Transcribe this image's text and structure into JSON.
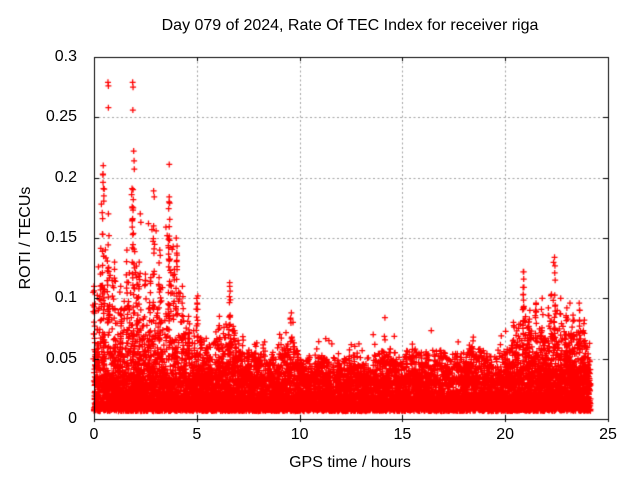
{
  "page": {
    "background": "#ffffff"
  },
  "chart_data": {
    "type": "scatter",
    "title": "Day 079 of 2024, Rate Of TEC Index for receiver riga",
    "xlabel": "GPS time / hours",
    "ylabel": "ROTI / TECUs",
    "xlim": [
      0,
      25
    ],
    "ylim": [
      0,
      0.3
    ],
    "xticks": [
      0,
      5,
      10,
      15,
      20,
      25
    ],
    "xtick_labels": [
      "0",
      "5",
      "10",
      "15",
      "20",
      "25"
    ],
    "yticks": [
      0,
      0.05,
      0.1,
      0.15,
      0.2,
      0.25,
      0.3
    ],
    "ytick_labels": [
      "0",
      "0.05",
      "0.1",
      "0.15",
      "0.2",
      "0.25",
      "0.3"
    ],
    "grid": true,
    "legend": "none",
    "marker": "plus",
    "marker_color": "#ff0000",
    "grid_color": "#a0a0a0",
    "axis_color": "#000000",
    "x_data_range": [
      0,
      24.15
    ],
    "baseline_band": {
      "description": "dense ROTI noise floor present at all hours, solid red band",
      "y_min": 0.005,
      "y_dense_top": 0.04,
      "y_typical_max": 0.055,
      "n_points": 9000
    },
    "activity_envelope": {
      "description": "approximate local maximum of spiky ROTI activity vs GPS hour",
      "points": [
        [
          0,
          0.11
        ],
        [
          0.45,
          0.21
        ],
        [
          0.7,
          0.17
        ],
        [
          1.0,
          0.13
        ],
        [
          1.3,
          0.11
        ],
        [
          1.6,
          0.14
        ],
        [
          1.9,
          0.19
        ],
        [
          2.2,
          0.13
        ],
        [
          2.5,
          0.12
        ],
        [
          2.9,
          0.16
        ],
        [
          3.2,
          0.14
        ],
        [
          3.65,
          0.18
        ],
        [
          4.0,
          0.15
        ],
        [
          4.3,
          0.11
        ],
        [
          4.6,
          0.085
        ],
        [
          5.0,
          0.1
        ],
        [
          5.5,
          0.075
        ],
        [
          6.1,
          0.085
        ],
        [
          6.6,
          0.11
        ],
        [
          7.1,
          0.075
        ],
        [
          7.7,
          0.075
        ],
        [
          8.2,
          0.065
        ],
        [
          8.7,
          0.065
        ],
        [
          9.2,
          0.065
        ],
        [
          9.6,
          0.088
        ],
        [
          10.0,
          0.065
        ],
        [
          10.5,
          0.062
        ],
        [
          11.0,
          0.065
        ],
        [
          11.4,
          0.07
        ],
        [
          12.0,
          0.06
        ],
        [
          12.5,
          0.065
        ],
        [
          13.0,
          0.062
        ],
        [
          13.5,
          0.065
        ],
        [
          14.0,
          0.072
        ],
        [
          14.5,
          0.062
        ],
        [
          15.0,
          0.065
        ],
        [
          15.6,
          0.075
        ],
        [
          16.0,
          0.07
        ],
        [
          16.5,
          0.066
        ],
        [
          17.0,
          0.07
        ],
        [
          17.5,
          0.066
        ],
        [
          18.0,
          0.071
        ],
        [
          18.5,
          0.075
        ],
        [
          19.0,
          0.071
        ],
        [
          19.5,
          0.066
        ],
        [
          20.0,
          0.071
        ],
        [
          20.4,
          0.08
        ],
        [
          20.9,
          0.122
        ],
        [
          21.2,
          0.09
        ],
        [
          21.5,
          0.096
        ],
        [
          21.8,
          0.1
        ],
        [
          22.1,
          0.092
        ],
        [
          22.4,
          0.134
        ],
        [
          22.7,
          0.1
        ],
        [
          23.0,
          0.092
        ],
        [
          23.3,
          0.086
        ],
        [
          23.6,
          0.096
        ],
        [
          23.85,
          0.082
        ],
        [
          24,
          0.07
        ]
      ]
    },
    "outliers": [
      [
        0.68,
        0.279
      ],
      [
        0.7,
        0.276
      ],
      [
        1.88,
        0.279
      ],
      [
        1.9,
        0.275
      ],
      [
        0.7,
        0.258
      ],
      [
        1.89,
        0.256
      ],
      [
        1.93,
        0.222
      ],
      [
        1.95,
        0.214
      ],
      [
        1.96,
        0.207
      ],
      [
        0.45,
        0.21
      ],
      [
        0.44,
        0.203
      ],
      [
        3.66,
        0.211
      ],
      [
        0.44,
        0.196
      ],
      [
        0.46,
        0.191
      ],
      [
        1.85,
        0.191
      ],
      [
        1.83,
        0.186
      ],
      [
        2.9,
        0.189
      ],
      [
        2.93,
        0.184
      ],
      [
        3.66,
        0.184
      ],
      [
        3.68,
        0.179
      ],
      [
        0.36,
        0.178
      ],
      [
        0.4,
        0.171
      ],
      [
        0.42,
        0.166
      ],
      [
        1.9,
        0.173
      ],
      [
        1.88,
        0.166
      ],
      [
        1.86,
        0.159
      ],
      [
        2.65,
        0.162
      ],
      [
        2.82,
        0.157
      ],
      [
        3.02,
        0.156
      ],
      [
        3.5,
        0.159
      ],
      [
        3.56,
        0.152
      ],
      [
        2.25,
        0.17
      ],
      [
        2.28,
        0.163
      ],
      [
        14.15,
        0.084
      ],
      [
        6.6,
        0.113
      ],
      [
        6.62,
        0.106
      ],
      [
        9.68,
        0.08
      ],
      [
        20.88,
        0.122
      ],
      [
        20.9,
        0.116
      ],
      [
        20.87,
        0.109
      ],
      [
        22.4,
        0.134
      ],
      [
        22.42,
        0.127
      ],
      [
        22.41,
        0.121
      ],
      [
        22.43,
        0.115
      ],
      [
        23.15,
        0.096
      ],
      [
        21.8,
        0.1
      ],
      [
        21.5,
        0.095
      ],
      [
        5.05,
        0.102
      ],
      [
        5.02,
        0.096
      ]
    ]
  }
}
